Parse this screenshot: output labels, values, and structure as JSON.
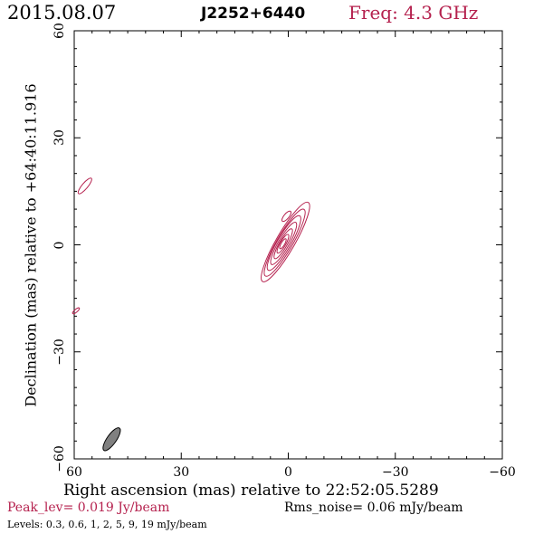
{
  "header": {
    "date": "2015.08.07",
    "source": "J2252+6440",
    "freq_label": "Freq: 4.3 GHz"
  },
  "colors": {
    "contour": "#b5214e",
    "beam_fill": "#808080",
    "axis": "#000000",
    "accent_text": "#b5214e"
  },
  "footer": {
    "peak_label": "Peak_lev=  0.019 Jy/beam",
    "rms_label": "Rms_noise= 0.06 mJy/beam",
    "levels_label": "Levels: 0.3,  0.6,    1,    2,    5,    9,   19  mJy/beam"
  },
  "chart_data": {
    "type": "contour",
    "xlabel": "Right ascension (mas) relative to 22:52:05.5289",
    "ylabel": "Declination (mas) relative to +64:40:11.916",
    "xlim": [
      60,
      -60
    ],
    "ylim": [
      -60,
      60
    ],
    "x_ticks": [
      60,
      30,
      0,
      -30,
      -60
    ],
    "y_ticks": [
      60,
      30,
      0,
      -30,
      -60
    ],
    "x_tick_labels": [
      "60",
      "30",
      "0",
      "−30",
      "−60"
    ],
    "y_tick_labels": [
      "60",
      "30",
      "0",
      "−30",
      "−60"
    ],
    "contour_levels_mJy": [
      0.3,
      0.6,
      1,
      2,
      5,
      9,
      19
    ],
    "core": {
      "ra": 1.5,
      "dec": 0.5,
      "pa_deg": 30,
      "contours": [
        {
          "level": 0.3,
          "ra": 0.8,
          "dec": 0.8,
          "major": 12.8,
          "minor": 2.6
        },
        {
          "level": 0.6,
          "ra": 1.0,
          "dec": 0.6,
          "major": 10.8,
          "minor": 2.2
        },
        {
          "level": 1,
          "ra": 1.2,
          "dec": 0.5,
          "major": 8.8,
          "minor": 1.9
        },
        {
          "level": 2,
          "ra": 1.3,
          "dec": 0.4,
          "major": 6.8,
          "minor": 1.5
        },
        {
          "level": 5,
          "ra": 1.4,
          "dec": 0.3,
          "major": 4.8,
          "minor": 1.1
        },
        {
          "level": 9,
          "ra": 1.5,
          "dec": 0.3,
          "major": 3.0,
          "minor": 0.8
        },
        {
          "level": 19,
          "ra": 1.5,
          "dec": 0.3,
          "major": 1.6,
          "minor": 0.5
        }
      ]
    },
    "islands": [
      {
        "ra": 0.5,
        "dec": 8.0,
        "major": 1.8,
        "minor": 0.7,
        "pa_deg": 40
      },
      {
        "ra": 57.0,
        "dec": 16.5,
        "major": 2.8,
        "minor": 0.8,
        "pa_deg": 40
      },
      {
        "ra": 59.5,
        "dec": -18.5,
        "major": 1.2,
        "minor": 0.4,
        "pa_deg": 50
      }
    ],
    "beam": {
      "ra": 49.5,
      "dec": -54.5,
      "major": 3.8,
      "minor": 1.3,
      "pa_deg": 35
    },
    "grid": false
  }
}
